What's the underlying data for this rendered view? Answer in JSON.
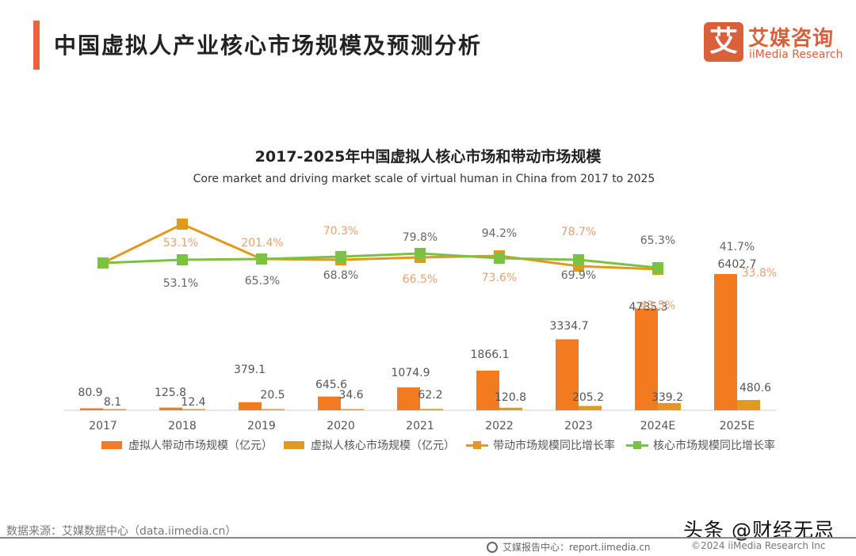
{
  "header": {
    "title": "中国虚拟人产业核心市场规模及预测分析",
    "logo_mark": "艾",
    "logo_cn": "艾媒咨询",
    "logo_en": "iiMedia Research",
    "accent_color": "#e8643a"
  },
  "chart_data": {
    "type": "bar",
    "title": "2017-2025年中国虚拟人核心市场和带动市场规模",
    "subtitle": "Core market and driving market scale of virtual human in China from 2017 to 2025",
    "categories": [
      "2017",
      "2018",
      "2019",
      "2020",
      "2021",
      "2022",
      "2023",
      "2024E",
      "2025E"
    ],
    "xlabel": "",
    "ylabel": "",
    "grid": false,
    "legend_position": "bottom",
    "series": [
      {
        "name": "虚拟人带动市场规模（亿元）",
        "type": "bar",
        "color": "#f47a20",
        "values": [
          80.9,
          125.8,
          379.1,
          645.6,
          1074.9,
          1866.1,
          3334.7,
          4785.3,
          6402.7
        ]
      },
      {
        "name": "虚拟人核心市场规模（亿元）",
        "type": "bar",
        "color": "#e09a1e",
        "values": [
          8.1,
          12.4,
          20.5,
          34.6,
          62.2,
          120.8,
          205.2,
          339.2,
          480.6
        ]
      },
      {
        "name": "带动市场规模同比增长率",
        "type": "line",
        "color": "#e09a1e",
        "label_color": "#e6a06e",
        "unit": "%",
        "values": [
          53.1,
          201.4,
          70.3,
          66.5,
          73.6,
          78.7,
          43.5,
          33.8,
          null
        ],
        "point_values": [
          53.1,
          201.4,
          70.3,
          66.5,
          73.6,
          78.7,
          43.5,
          33.8
        ]
      },
      {
        "name": "核心市场规模同比增长率",
        "type": "line",
        "color": "#7cc242",
        "label_color": "#666666",
        "unit": "%",
        "values": [
          53.1,
          65.3,
          68.8,
          79.8,
          94.2,
          69.9,
          65.3,
          41.7,
          null
        ]
      }
    ],
    "line_labels": {
      "driving": [
        "53.1%",
        "201.4%",
        "70.3%",
        "66.5%",
        "73.6%",
        "78.7%",
        "43.5%",
        "33.8%"
      ],
      "core": [
        "53.1%",
        "65.3%",
        "68.8%",
        "79.8%",
        "94.2%",
        "69.9%",
        "65.3%",
        "41.7%"
      ]
    }
  },
  "legend": {
    "items": [
      {
        "label": "虚拟人带动市场规模（亿元）",
        "color": "#f47a20"
      },
      {
        "label": "虚拟人核心市场规模（亿元）",
        "color": "#e09a1e"
      },
      {
        "label": "带动市场规模同比增长率",
        "color": "#e09a1e"
      },
      {
        "label": "核心市场规模同比增长率",
        "color": "#7cc242"
      }
    ]
  },
  "footer": {
    "source": "数据来源：艾媒数据中心（data.iimedia.cn）",
    "report_center": "艾媒报告中心：report.iimedia.cn",
    "copyright": "©2024  iiMedia Research  Inc",
    "watermark": "头条 @财经无忌"
  }
}
